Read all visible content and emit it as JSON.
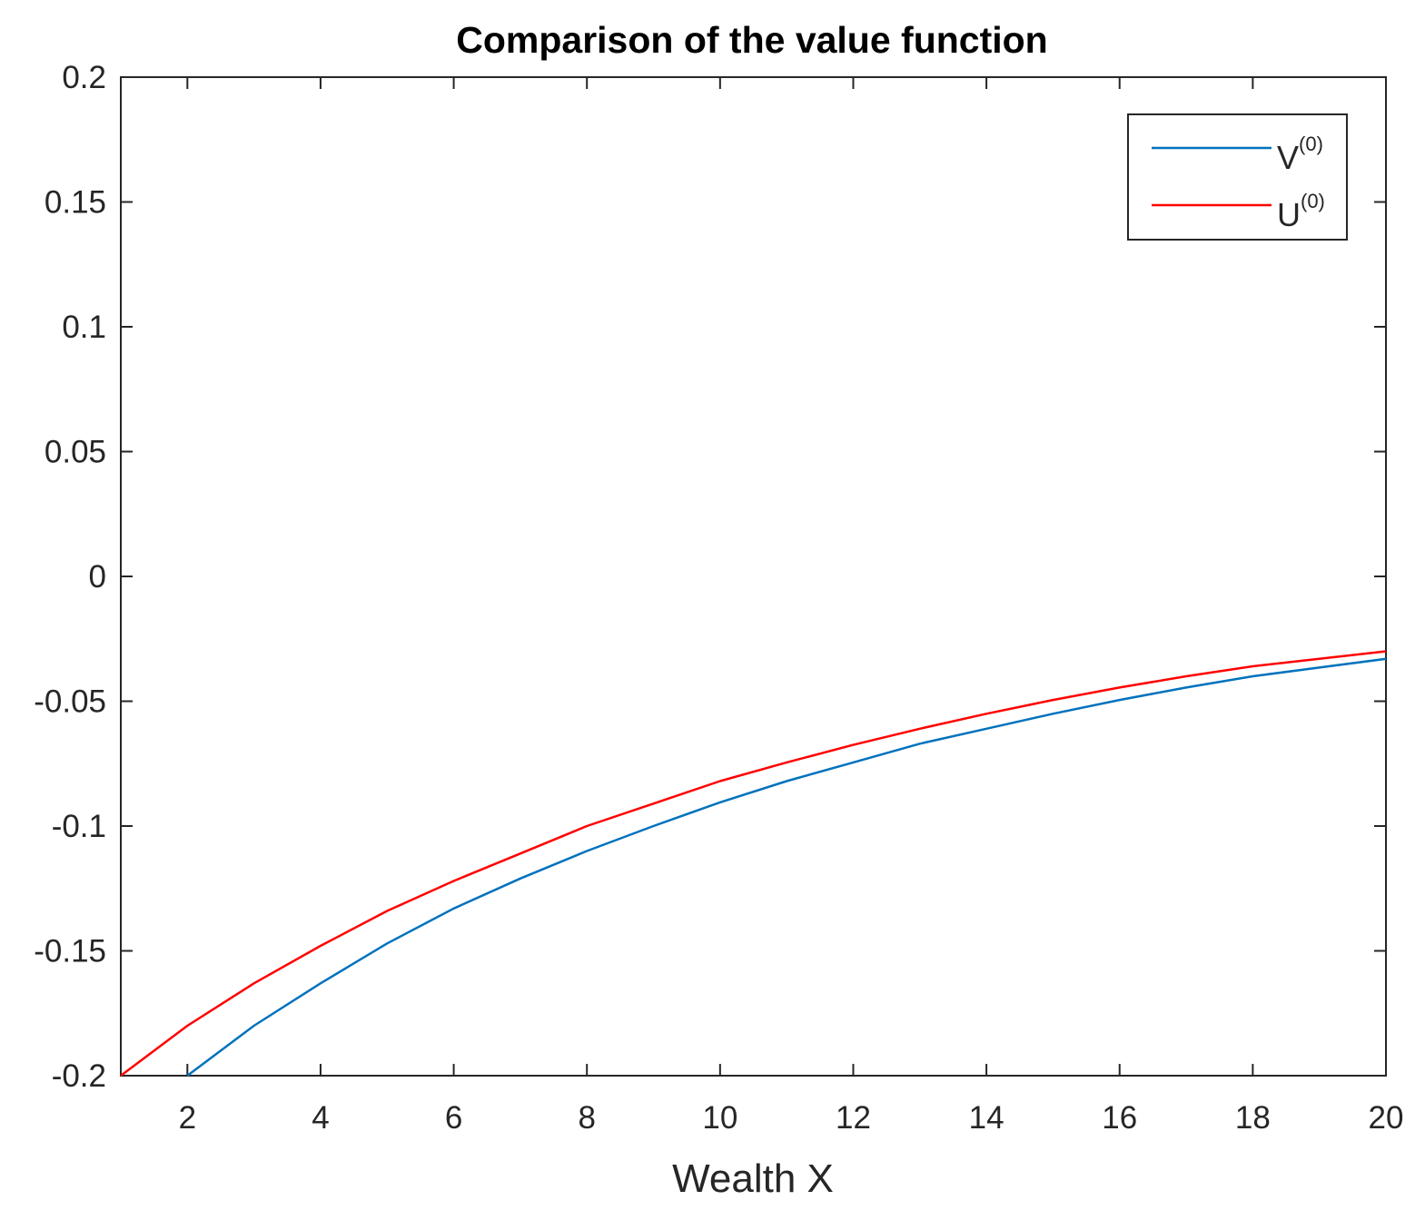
{
  "chart_data": {
    "type": "line",
    "title": "Comparison of the value function",
    "xlabel": "Wealth X",
    "ylabel": "",
    "xlim": [
      1,
      20
    ],
    "ylim": [
      -0.2,
      0.2
    ],
    "xticks": [
      2,
      4,
      6,
      8,
      10,
      12,
      14,
      16,
      18,
      20
    ],
    "yticks": [
      -0.2,
      -0.15,
      -0.1,
      -0.05,
      0,
      0.05,
      0.1,
      0.15,
      0.2
    ],
    "xtick_labels": [
      "2",
      "4",
      "6",
      "8",
      "10",
      "12",
      "14",
      "16",
      "18",
      "20"
    ],
    "ytick_labels": [
      "-0.2",
      "-0.15",
      "-0.1",
      "-0.05",
      "0",
      "0.05",
      "0.1",
      "0.15",
      "0.2"
    ],
    "grid": false,
    "legend_position": "top-right",
    "series": [
      {
        "name": "V",
        "name_sup": "(0)",
        "color": "#0072BD",
        "x": [
          2,
          3,
          4,
          5,
          6,
          7,
          8,
          9,
          10,
          11,
          12,
          13,
          14,
          15,
          16,
          17,
          18,
          19,
          20
        ],
        "y": [
          -0.2,
          -0.18,
          -0.163,
          -0.147,
          -0.133,
          -0.121,
          -0.11,
          -0.1,
          -0.0905,
          -0.082,
          -0.0745,
          -0.067,
          -0.061,
          -0.055,
          -0.0495,
          -0.0445,
          -0.04,
          -0.0365,
          -0.033
        ]
      },
      {
        "name": "U",
        "name_sup": "(0)",
        "color": "#FF0000",
        "x": [
          1,
          2,
          3,
          4,
          5,
          6,
          7,
          8,
          9,
          10,
          11,
          12,
          13,
          14,
          15,
          16,
          17,
          18,
          19,
          20
        ],
        "y": [
          -0.2,
          -0.18,
          -0.163,
          -0.148,
          -0.134,
          -0.122,
          -0.111,
          -0.1,
          -0.091,
          -0.082,
          -0.0745,
          -0.0675,
          -0.061,
          -0.055,
          -0.0495,
          -0.0445,
          -0.04,
          -0.036,
          -0.033,
          -0.03
        ]
      }
    ]
  }
}
